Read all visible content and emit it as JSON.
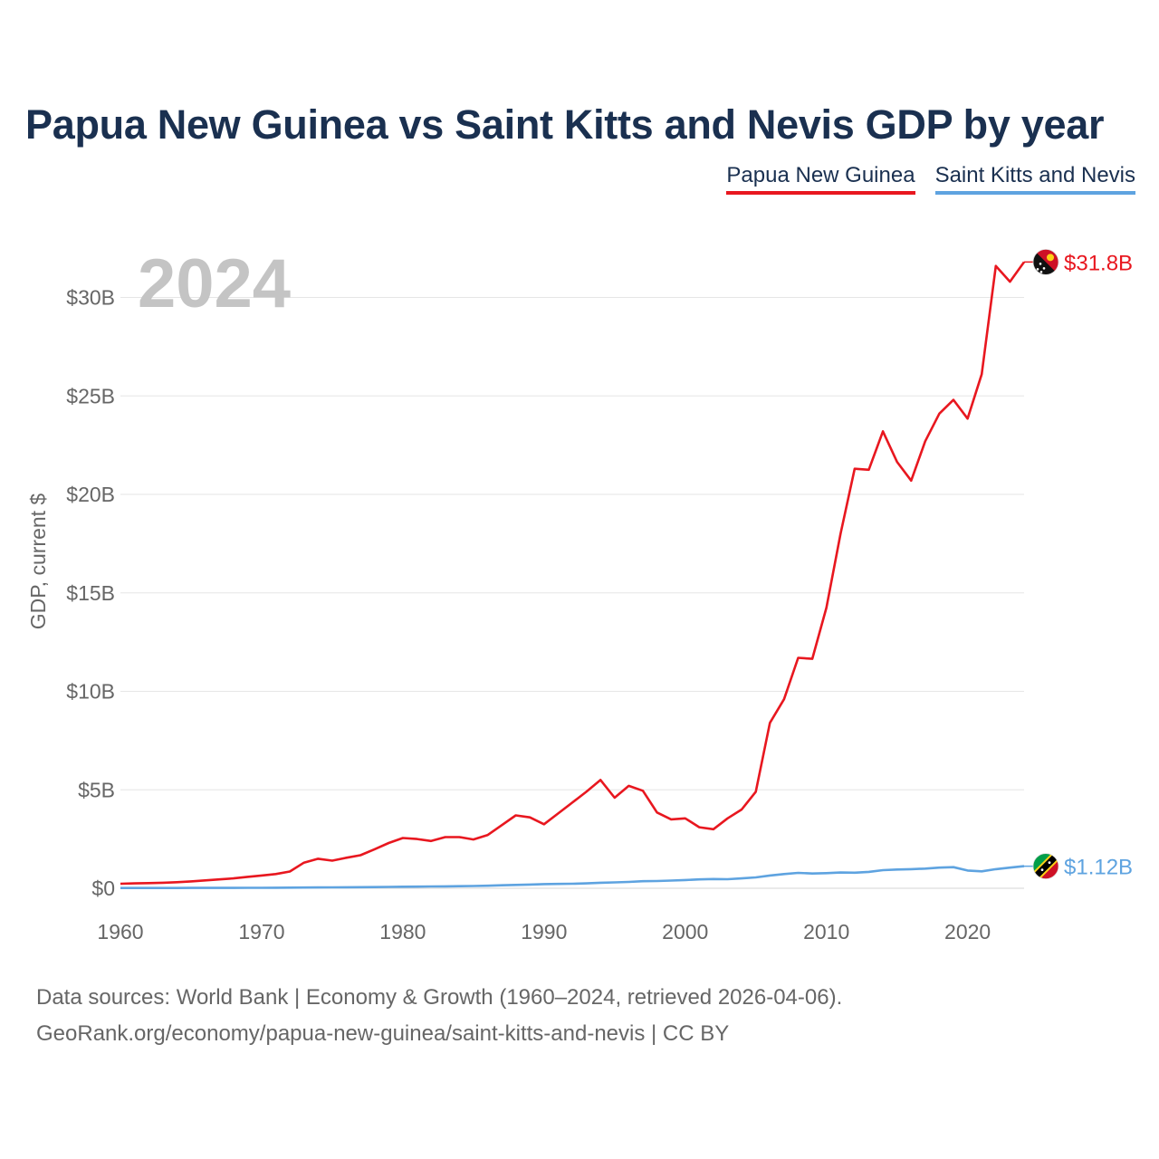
{
  "chart_data": {
    "type": "line",
    "title": "Papua New Guinea vs Saint Kitts and Nevis GDP by year",
    "ylabel": "GDP, current $",
    "xlabel": "",
    "year_label": "2024",
    "xlim": [
      1960,
      2024
    ],
    "ylim": [
      0,
      32
    ],
    "grid": true,
    "legend_position": "top-right",
    "x_ticks": [
      1960,
      1970,
      1980,
      1990,
      2000,
      2010,
      2020
    ],
    "x_tick_labels": [
      "1960",
      "1970",
      "1980",
      "1990",
      "2000",
      "2010",
      "2020"
    ],
    "y_ticks": [
      0,
      5,
      10,
      15,
      20,
      25,
      30
    ],
    "y_tick_labels": [
      "$0",
      "$5B",
      "$10B",
      "$15B",
      "$20B",
      "$25B",
      "$30B"
    ],
    "x": [
      1960,
      1961,
      1962,
      1963,
      1964,
      1965,
      1966,
      1967,
      1968,
      1969,
      1970,
      1971,
      1972,
      1973,
      1974,
      1975,
      1976,
      1977,
      1978,
      1979,
      1980,
      1981,
      1982,
      1983,
      1984,
      1985,
      1986,
      1987,
      1988,
      1989,
      1990,
      1991,
      1992,
      1993,
      1994,
      1995,
      1996,
      1997,
      1998,
      1999,
      2000,
      2001,
      2002,
      2003,
      2004,
      2005,
      2006,
      2007,
      2008,
      2009,
      2010,
      2011,
      2012,
      2013,
      2014,
      2015,
      2016,
      2017,
      2018,
      2019,
      2020,
      2021,
      2022,
      2023,
      2024
    ],
    "series": [
      {
        "name": "Papua New Guinea",
        "color": "#e8171f",
        "end_label": "$31.8B",
        "values": [
          0.23,
          0.25,
          0.26,
          0.28,
          0.31,
          0.35,
          0.4,
          0.45,
          0.5,
          0.58,
          0.65,
          0.72,
          0.85,
          1.3,
          1.5,
          1.4,
          1.55,
          1.68,
          1.98,
          2.3,
          2.55,
          2.5,
          2.4,
          2.6,
          2.6,
          2.48,
          2.7,
          3.2,
          3.7,
          3.6,
          3.25,
          3.8,
          4.35,
          4.9,
          5.5,
          4.6,
          5.2,
          4.95,
          3.85,
          3.5,
          3.55,
          3.1,
          3.0,
          3.55,
          4.0,
          4.9,
          8.4,
          9.6,
          11.7,
          11.65,
          14.25,
          18.0,
          21.3,
          21.25,
          23.2,
          21.65,
          20.7,
          22.7,
          24.1,
          24.8,
          23.85,
          26.1,
          31.6,
          30.8,
          31.8
        ]
      },
      {
        "name": "Saint Kitts and Nevis",
        "color": "#5ea3e0",
        "end_label": "$1.12B",
        "values": [
          0.012,
          0.013,
          0.014,
          0.015,
          0.016,
          0.017,
          0.018,
          0.019,
          0.02,
          0.022,
          0.024,
          0.026,
          0.03,
          0.035,
          0.04,
          0.045,
          0.05,
          0.055,
          0.062,
          0.07,
          0.08,
          0.085,
          0.09,
          0.095,
          0.105,
          0.115,
          0.13,
          0.15,
          0.17,
          0.19,
          0.21,
          0.22,
          0.23,
          0.25,
          0.28,
          0.3,
          0.32,
          0.36,
          0.37,
          0.39,
          0.42,
          0.45,
          0.47,
          0.46,
          0.5,
          0.55,
          0.65,
          0.72,
          0.78,
          0.75,
          0.77,
          0.8,
          0.79,
          0.83,
          0.92,
          0.95,
          0.97,
          1.0,
          1.05,
          1.07,
          0.9,
          0.86,
          0.97,
          1.05,
          1.12
        ]
      }
    ]
  },
  "legend": {
    "items": [
      {
        "label": "Papua New Guinea",
        "color": "#e8171f"
      },
      {
        "label": "Saint Kitts and Nevis",
        "color": "#5ea3e0"
      }
    ]
  },
  "footer": {
    "line1": "Data sources: World Bank | Economy & Growth (1960–2024, retrieved 2026-04-06).",
    "line2": "GeoRank.org/economy/papua-new-guinea/saint-kitts-and-nevis | CC BY"
  },
  "flags": {
    "papua_new_guinea": "papua-new-guinea-flag-icon",
    "saint_kitts_and_nevis": "saint-kitts-and-nevis-flag-icon"
  }
}
